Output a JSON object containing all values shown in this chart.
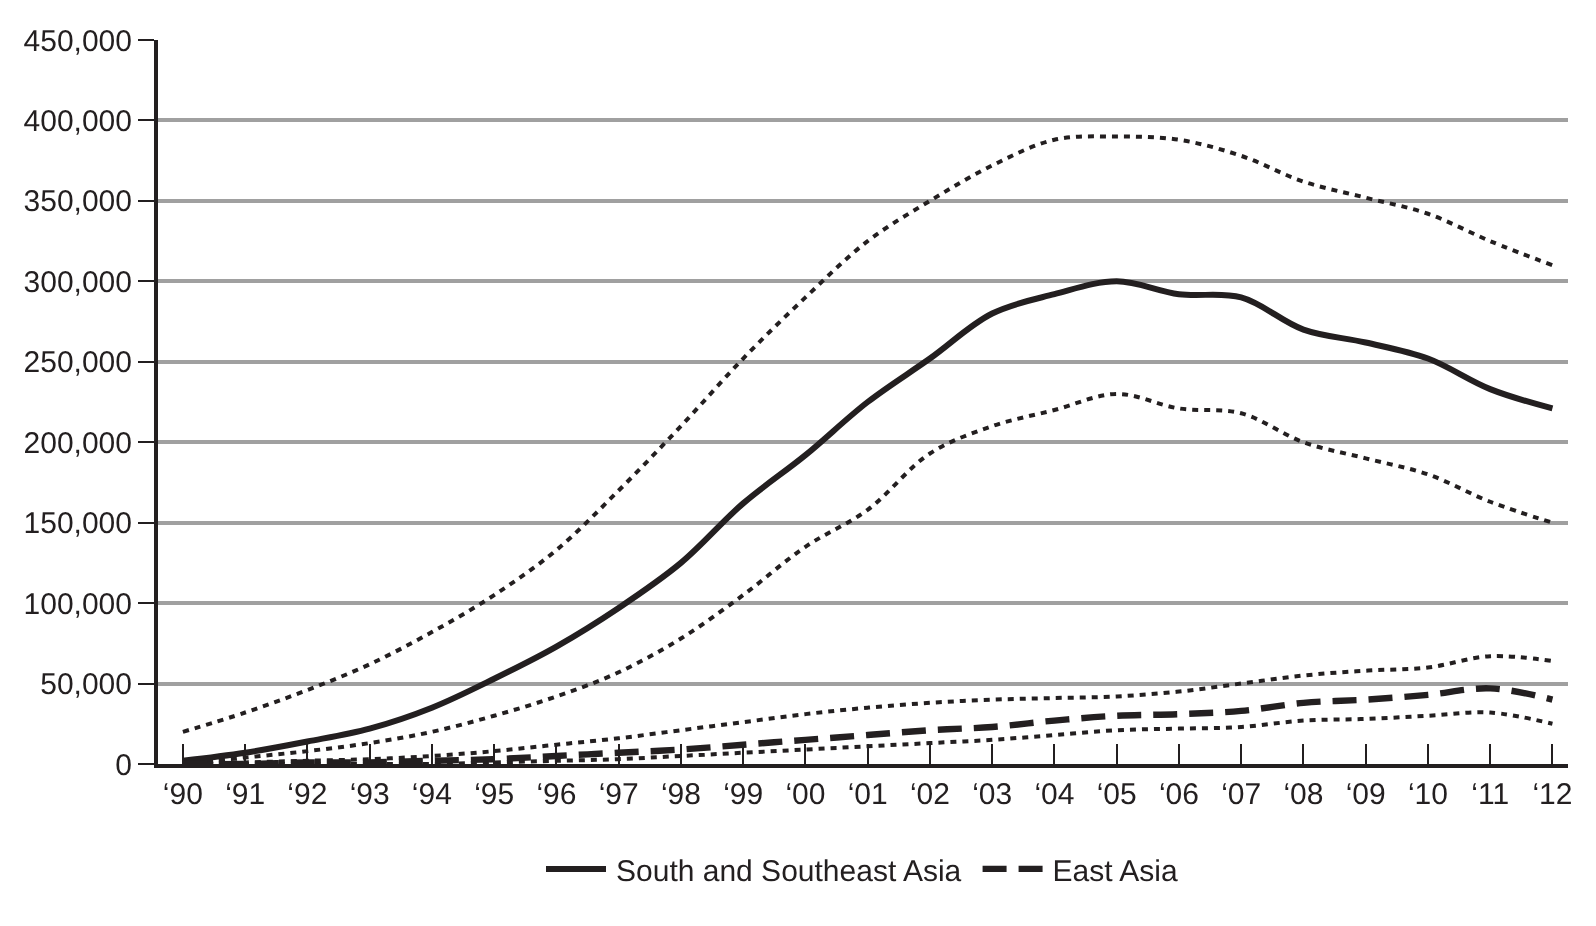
{
  "chart_data": {
    "type": "line",
    "categories": [
      "‘90",
      "‘91",
      "‘92",
      "‘93",
      "‘94",
      "‘95",
      "‘96",
      "‘97",
      "‘98",
      "‘99",
      "‘00",
      "‘01",
      "‘02",
      "‘03",
      "‘04",
      "‘05",
      "‘06",
      "‘07",
      "‘08",
      "‘09",
      "‘10",
      "‘11",
      "‘12"
    ],
    "series": [
      {
        "color": "#231f20",
        "line_style": "dotted",
        "values": [
          20000,
          32000,
          46000,
          62000,
          82000,
          105000,
          133000,
          170000,
          210000,
          252000,
          290000,
          325000,
          350000,
          372000,
          388000,
          390000,
          388000,
          378000,
          362000,
          352000,
          342000,
          325000,
          310000
        ]
      },
      {
        "color": "#231f20",
        "line_style": "dotted",
        "values": [
          0,
          4000,
          8000,
          13000,
          20000,
          30000,
          42000,
          57000,
          78000,
          105000,
          135000,
          158000,
          193000,
          210000,
          220000,
          230000,
          221000,
          218000,
          200000,
          190000,
          180000,
          163000,
          150000
        ]
      },
      {
        "color": "#231f20",
        "line_style": "dotted",
        "values": [
          0,
          1000,
          2000,
          3000,
          5000,
          8000,
          12000,
          16000,
          21000,
          26000,
          31000,
          35000,
          38000,
          40000,
          41000,
          42000,
          45000,
          50000,
          55000,
          58000,
          60000,
          67000,
          64000
        ]
      },
      {
        "color": "#231f20",
        "line_style": "dotted",
        "values": [
          0,
          0,
          0,
          0,
          0,
          1000,
          2000,
          3000,
          5000,
          7000,
          9000,
          11000,
          13000,
          15000,
          18000,
          21000,
          22000,
          23000,
          27000,
          28000,
          30000,
          32000,
          25000
        ]
      },
      {
        "name": "South and Southeast Asia",
        "color": "#231f20",
        "line_style": "solid",
        "values": [
          2000,
          7000,
          14000,
          22000,
          35000,
          53000,
          73000,
          97000,
          125000,
          162000,
          192000,
          225000,
          252000,
          280000,
          292000,
          300000,
          292000,
          290000,
          270000,
          262000,
          252000,
          233000,
          221000
        ]
      },
      {
        "name": "East Asia",
        "color": "#231f20",
        "line_style": "dashed",
        "values": [
          0,
          0,
          1000,
          1000,
          2000,
          3000,
          5000,
          7000,
          9000,
          12000,
          15000,
          18000,
          21000,
          23000,
          27000,
          30000,
          31000,
          33000,
          38000,
          40000,
          43000,
          47000,
          40000
        ]
      }
    ],
    "ylim": [
      0,
      450000
    ],
    "yticks": [
      0,
      {
        "value": 50000,
        "label": "50,000"
      },
      {
        "value": 100000,
        "label": "100,000"
      },
      {
        "value": 150000,
        "label": "150,000"
      },
      {
        "value": 200000,
        "label": "200,000"
      },
      {
        "value": 250000,
        "label": "250,000"
      },
      {
        "value": 300000,
        "label": "300,000"
      },
      {
        "value": 350000,
        "label": "350,000"
      },
      {
        "value": 400000,
        "label": "400,000"
      },
      {
        "value": 450000,
        "label": "450,000"
      }
    ],
    "grid": "y",
    "legend": "bottom",
    "marker": "none"
  }
}
